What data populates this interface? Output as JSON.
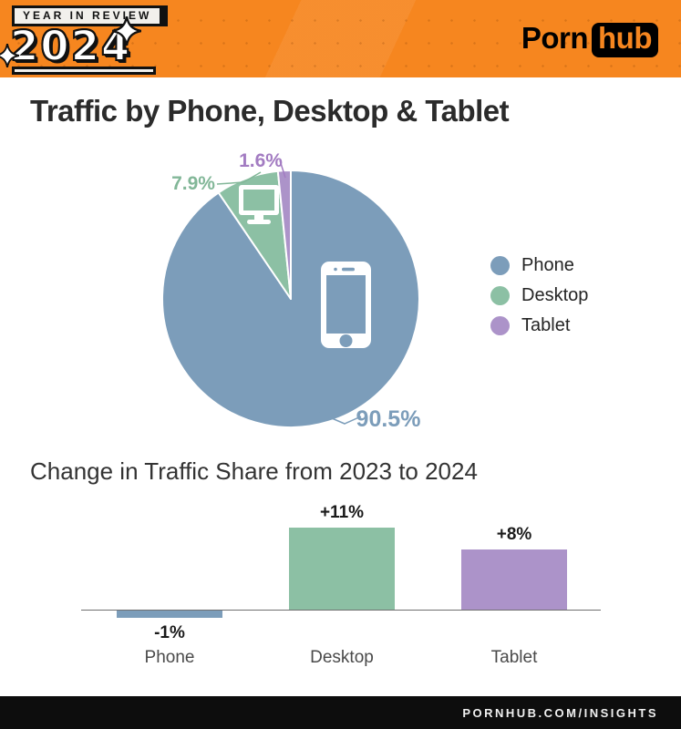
{
  "header": {
    "badge_line1": "YEAR IN REVIEW",
    "badge_year": "2024",
    "brand_porn": "Porn",
    "brand_hub": "hub"
  },
  "main": {
    "title": "Traffic by Phone, Desktop & Tablet",
    "subtitle": "Change in Traffic Share from 2023 to 2024"
  },
  "footer": {
    "url": "PORNHUB.COM/INSIGHTS"
  },
  "colors": {
    "header_orange": "#f6861f",
    "phone_blue": "#7c9dba",
    "desktop_green": "#8cc0a4",
    "tablet_purple": "#ac93c9"
  },
  "chart_data": [
    {
      "type": "pie",
      "title": "Traffic by Phone, Desktop & Tablet",
      "direction": "clockwise",
      "start_angle_deg": 0,
      "legend_position": "right",
      "slices": [
        {
          "label": "Phone",
          "value": 90.5,
          "display": "90.5%",
          "color": "#7c9dba",
          "label_color": "#7c9dba",
          "icon": "smartphone-icon"
        },
        {
          "label": "Desktop",
          "value": 7.9,
          "display": "7.9%",
          "color": "#8cc0a4",
          "label_color": "#82b798",
          "icon": "desktop-monitor-icon"
        },
        {
          "label": "Tablet",
          "value": 1.6,
          "display": "1.6%",
          "color": "#ac93c9",
          "label_color": "#a37cc2",
          "icon": ""
        }
      ]
    },
    {
      "type": "bar",
      "title": "Change in Traffic Share from 2023 to 2024",
      "categories": [
        "Phone",
        "Desktop",
        "Tablet"
      ],
      "values": [
        -1,
        11,
        8
      ],
      "value_labels": [
        "-1%",
        "+11%",
        "+8%"
      ],
      "colors": [
        "#7c9dba",
        "#8cc0a4",
        "#ac93c9"
      ],
      "baseline": 0,
      "grid": false
    }
  ]
}
